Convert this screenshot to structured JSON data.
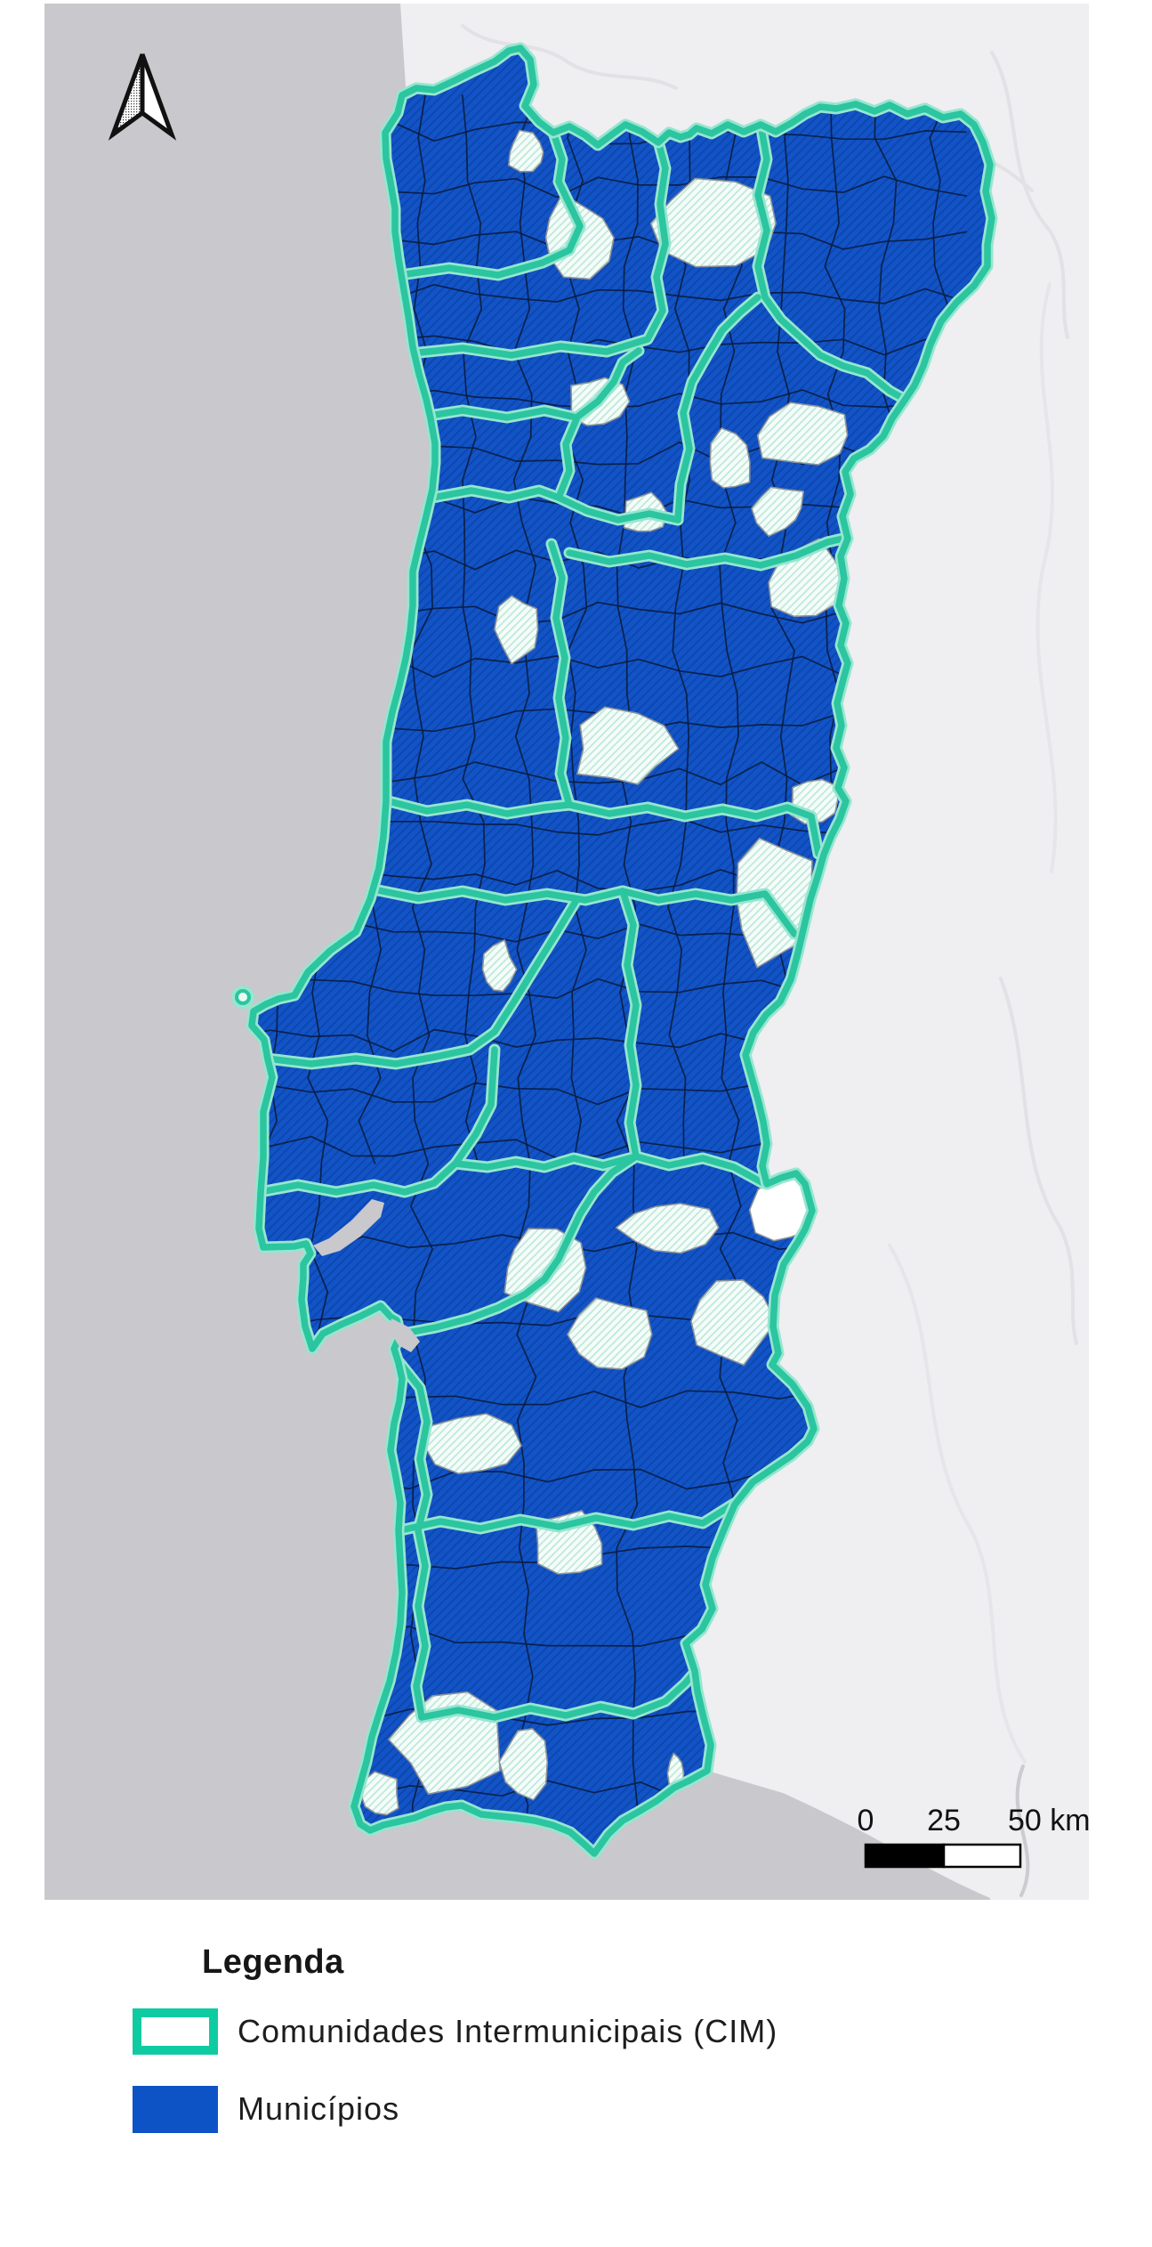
{
  "map": {
    "title": "Portugal CIM and municipalities map",
    "north_arrow": "north-arrow",
    "scale_bar": {
      "label_0": "0",
      "label_25": "25",
      "label_50": "50 km"
    },
    "colors": {
      "ocean": "#C9C8CC",
      "neighbor_land": "#EFEEF1",
      "municipality_fill": "#1254C7",
      "municipality_border": "#0A1C3F",
      "cim_boundary": "#2BC5A0",
      "cim_halo": "#96E6CF",
      "excluded_municipality_fill": "#F6FCF9"
    }
  },
  "legend": {
    "title": "Legenda",
    "items": [
      {
        "label": "Comunidades Intermunicipais (CIM)",
        "type": "outline",
        "color": "#0FCBA1"
      },
      {
        "label": "Municípios",
        "type": "fill",
        "color": "#0E53C6"
      }
    ]
  }
}
